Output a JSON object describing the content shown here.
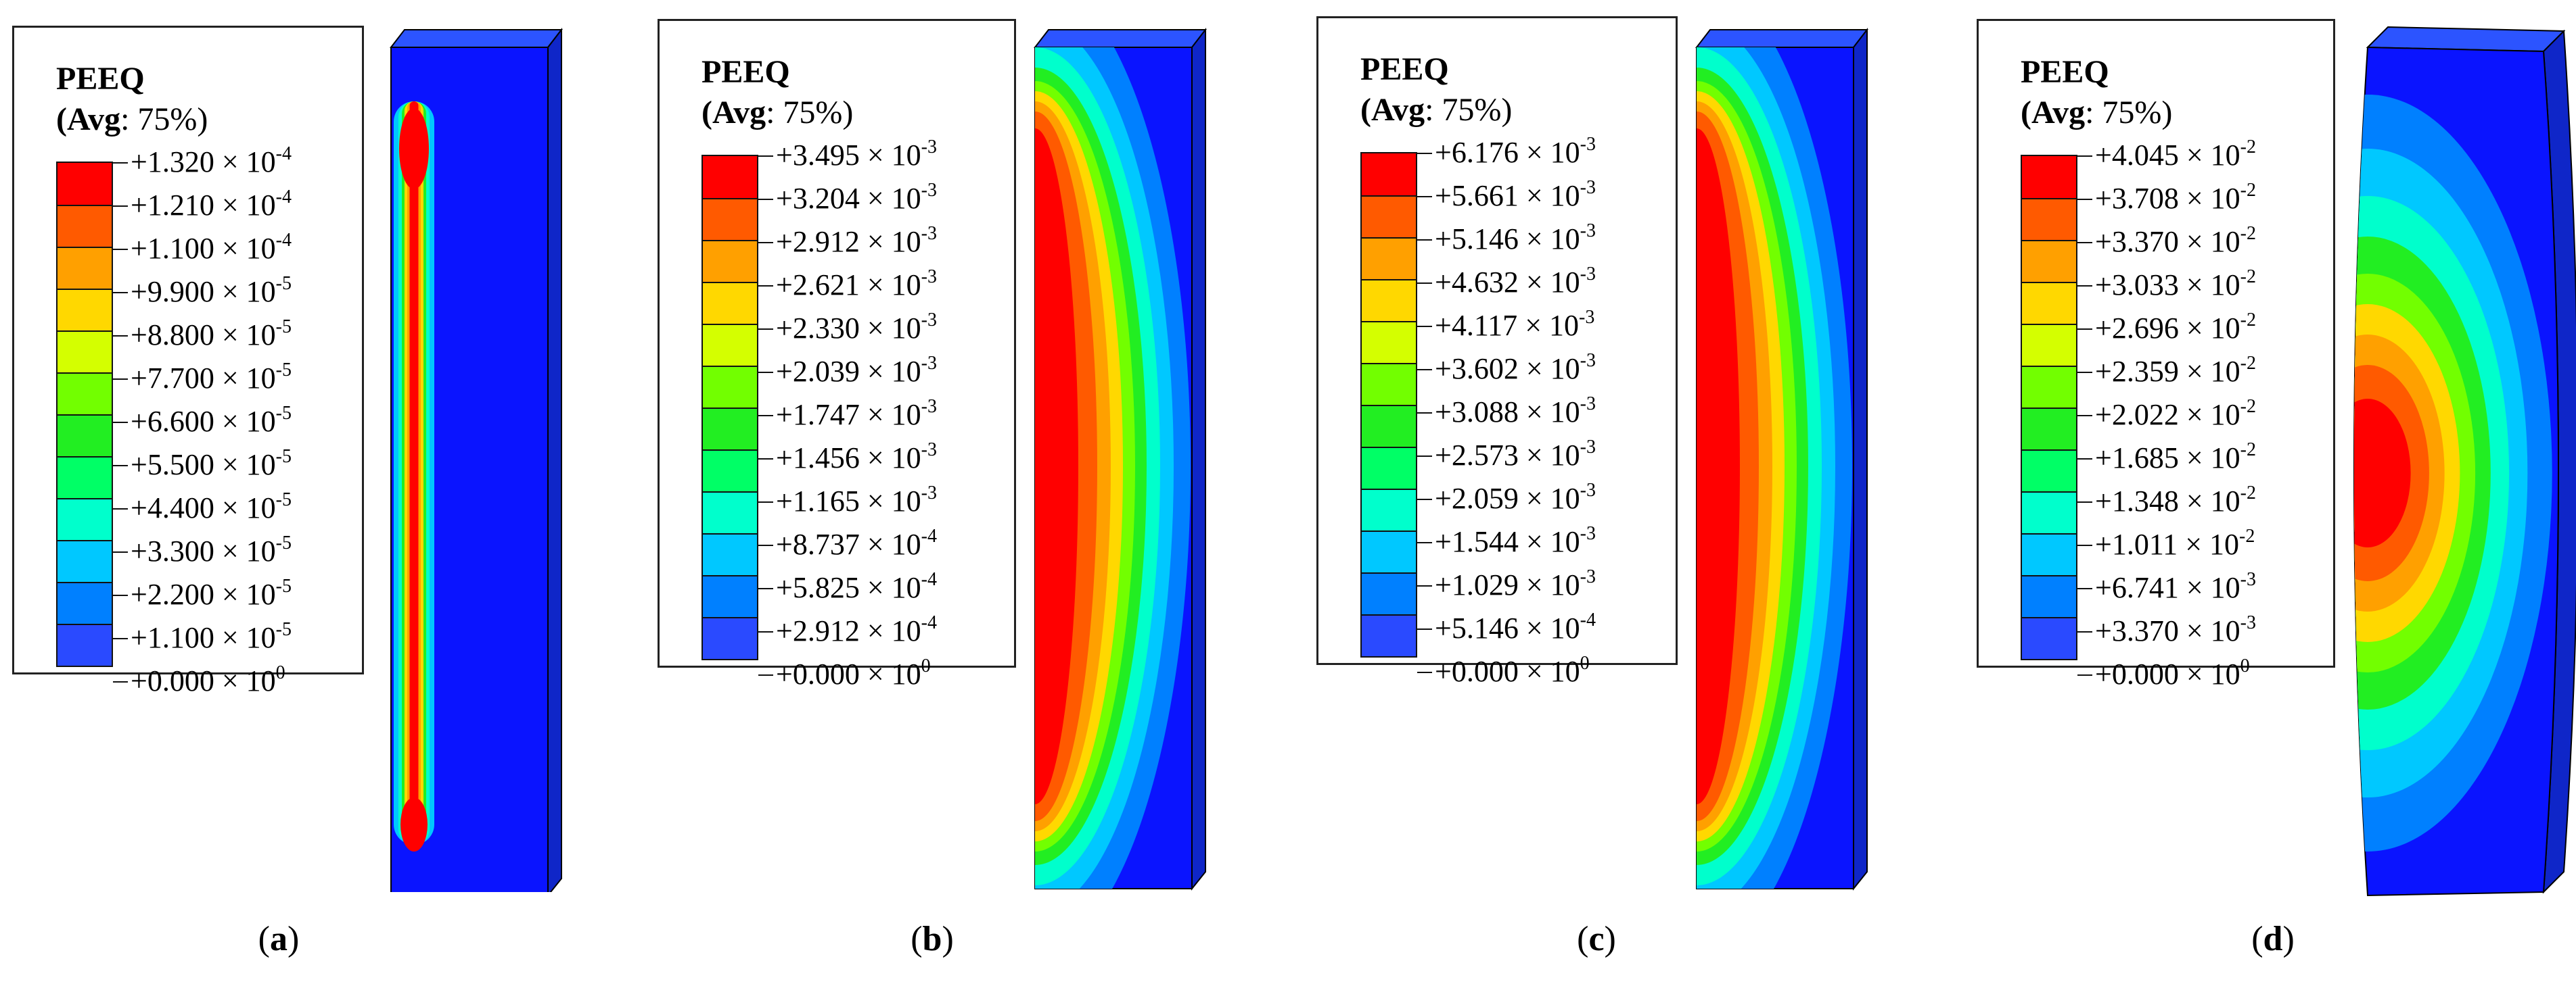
{
  "colors": {
    "scale": [
      "#ff0000",
      "#ff5a00",
      "#ffa000",
      "#ffd800",
      "#d4ff00",
      "#72ff00",
      "#22ee22",
      "#00ff66",
      "#00ffcc",
      "#00c8ff",
      "#0080ff",
      "#2a4aff",
      "#0a14ff"
    ],
    "specimen_base": "#1530e0"
  },
  "legend_title": "PEEQ",
  "legend_sub_bold": "(Avg",
  "legend_sub_rest": ": 75%)",
  "panels": [
    {
      "caption_letter": "a",
      "labels": [
        {
          "m": "+1.320",
          "e": "-4"
        },
        {
          "m": "+1.210",
          "e": "-4"
        },
        {
          "m": "+1.100",
          "e": "-4"
        },
        {
          "m": "+9.900",
          "e": "-5"
        },
        {
          "m": "+8.800",
          "e": "-5"
        },
        {
          "m": "+7.700",
          "e": "-5"
        },
        {
          "m": "+6.600",
          "e": "-5"
        },
        {
          "m": "+5.500",
          "e": "-5"
        },
        {
          "m": "+4.400",
          "e": "-5"
        },
        {
          "m": "+3.300",
          "e": "-5"
        },
        {
          "m": "+2.200",
          "e": "-5"
        },
        {
          "m": "+1.100",
          "e": "-5"
        },
        {
          "m": "+0.000",
          "e": "0"
        }
      ]
    },
    {
      "caption_letter": "b",
      "labels": [
        {
          "m": "+3.495",
          "e": "-3"
        },
        {
          "m": "+3.204",
          "e": "-3"
        },
        {
          "m": "+2.912",
          "e": "-3"
        },
        {
          "m": "+2.621",
          "e": "-3"
        },
        {
          "m": "+2.330",
          "e": "-3"
        },
        {
          "m": "+2.039",
          "e": "-3"
        },
        {
          "m": "+1.747",
          "e": "-3"
        },
        {
          "m": "+1.456",
          "e": "-3"
        },
        {
          "m": "+1.165",
          "e": "-3"
        },
        {
          "m": "+8.737",
          "e": "-4"
        },
        {
          "m": "+5.825",
          "e": "-4"
        },
        {
          "m": "+2.912",
          "e": "-4"
        },
        {
          "m": "+0.000",
          "e": "0"
        }
      ]
    },
    {
      "caption_letter": "c",
      "labels": [
        {
          "m": "+6.176",
          "e": "-3"
        },
        {
          "m": "+5.661",
          "e": "-3"
        },
        {
          "m": "+5.146",
          "e": "-3"
        },
        {
          "m": "+4.632",
          "e": "-3"
        },
        {
          "m": "+4.117",
          "e": "-3"
        },
        {
          "m": "+3.602",
          "e": "-3"
        },
        {
          "m": "+3.088",
          "e": "-3"
        },
        {
          "m": "+2.573",
          "e": "-3"
        },
        {
          "m": "+2.059",
          "e": "-3"
        },
        {
          "m": "+1.544",
          "e": "-3"
        },
        {
          "m": "+1.029",
          "e": "-3"
        },
        {
          "m": "+5.146",
          "e": "-4"
        },
        {
          "m": "+0.000",
          "e": "0"
        }
      ]
    },
    {
      "caption_letter": "d",
      "labels": [
        {
          "m": "+4.045",
          "e": "-2"
        },
        {
          "m": "+3.708",
          "e": "-2"
        },
        {
          "m": "+3.370",
          "e": "-2"
        },
        {
          "m": "+3.033",
          "e": "-2"
        },
        {
          "m": "+2.696",
          "e": "-2"
        },
        {
          "m": "+2.359",
          "e": "-2"
        },
        {
          "m": "+2.022",
          "e": "-2"
        },
        {
          "m": "+1.685",
          "e": "-2"
        },
        {
          "m": "+1.348",
          "e": "-2"
        },
        {
          "m": "+1.011",
          "e": "-2"
        },
        {
          "m": "+6.741",
          "e": "-3"
        },
        {
          "m": "+3.370",
          "e": "-3"
        },
        {
          "m": "+0.000",
          "e": "0"
        }
      ]
    }
  ]
}
